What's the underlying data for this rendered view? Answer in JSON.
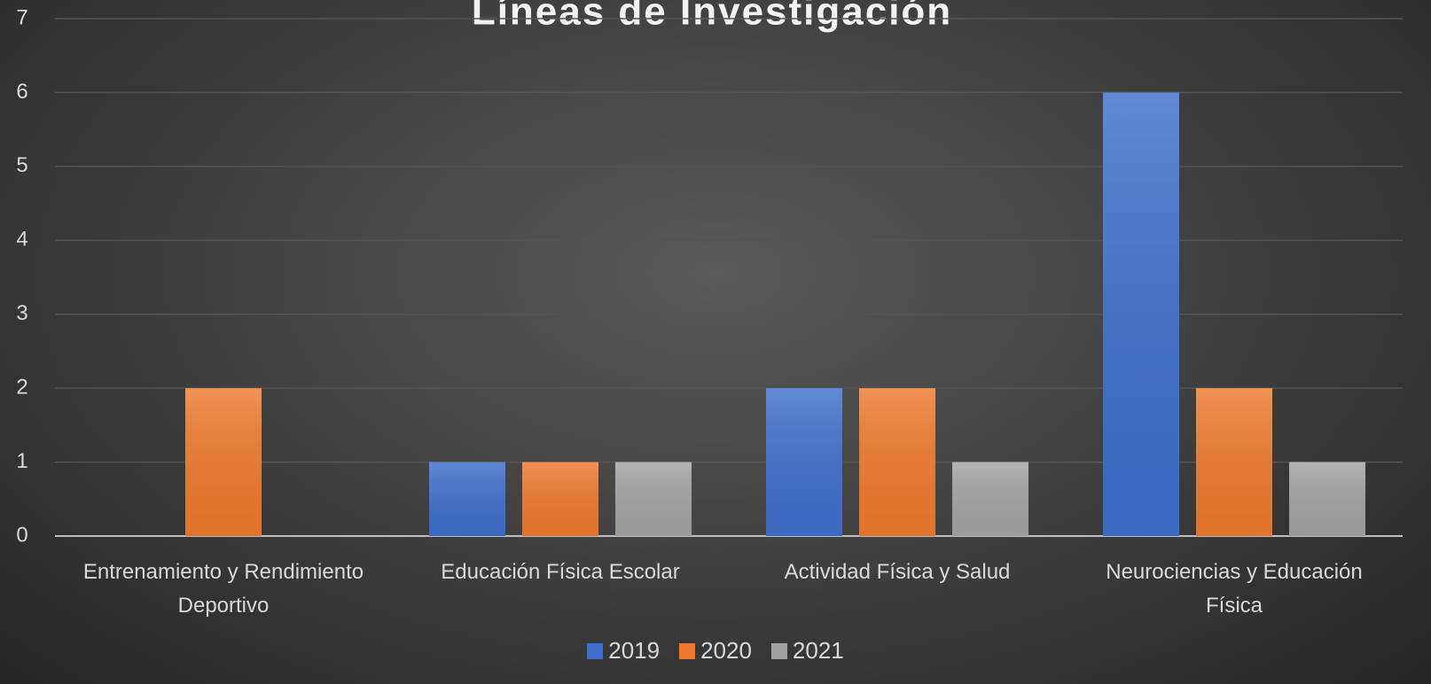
{
  "chart_data": {
    "type": "bar",
    "title": "Líneas de Investigación",
    "categories": [
      "Entrenamiento y Rendimiento Deportivo",
      "Educación Física Escolar",
      "Actividad Física y Salud",
      "Neurociencias y Educación Física"
    ],
    "series": [
      {
        "name": "2019",
        "color": "#3f6fcc",
        "values": [
          0,
          1,
          2,
          6
        ]
      },
      {
        "name": "2020",
        "color": "#ef7a2e",
        "values": [
          2,
          1,
          2,
          2
        ]
      },
      {
        "name": "2021",
        "color": "#a3a3a3",
        "values": [
          0,
          1,
          1,
          1
        ]
      }
    ],
    "ylim": [
      0,
      7
    ],
    "yticks": [
      0,
      1,
      2,
      3,
      4,
      5,
      6,
      7
    ],
    "grid": true,
    "legend": "bottom"
  }
}
